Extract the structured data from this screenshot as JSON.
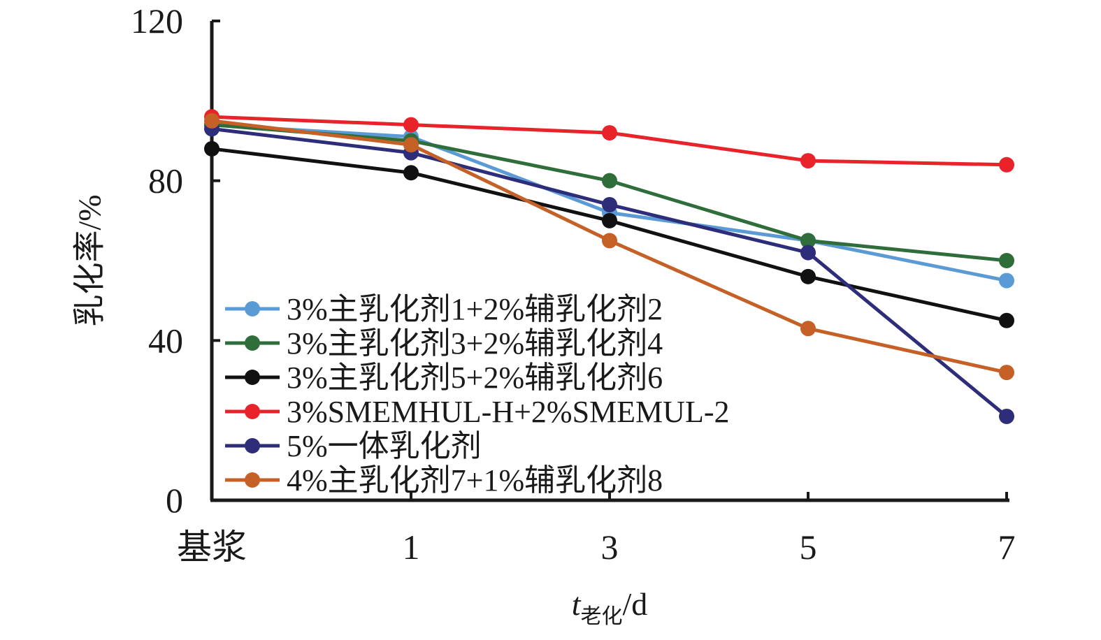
{
  "chart_data": {
    "type": "line",
    "categories": [
      "基浆",
      "1",
      "3",
      "5",
      "7"
    ],
    "ylim": [
      0,
      120
    ],
    "yticks": [
      0,
      40,
      80,
      120
    ],
    "xlabel_main": "t",
    "xlabel_sub": "老化",
    "xlabel_unit": "/d",
    "ylabel": "乳化率/%",
    "legend_position": "center-left",
    "grid": false,
    "series": [
      {
        "name": "3%主乳化剂1+2%辅乳化剂2",
        "color": "#5b9bd5",
        "values": [
          94,
          91,
          72,
          65,
          55
        ]
      },
      {
        "name": "3%主乳化剂3+2%辅乳化剂4",
        "color": "#2f6e3b",
        "values": [
          94,
          90,
          80,
          65,
          60
        ]
      },
      {
        "name": "3%主乳化剂5+2%辅乳化剂6",
        "color": "#111111",
        "values": [
          88,
          82,
          70,
          56,
          45
        ]
      },
      {
        "name": "3%SMEMHUL-H+2%SMEMUL-2",
        "color": "#e8242a",
        "values": [
          96,
          94,
          92,
          85,
          84
        ]
      },
      {
        "name": "5%一体乳化剂",
        "color": "#2e2d7a",
        "values": [
          93,
          87,
          74,
          62,
          21
        ]
      },
      {
        "name": "4%主乳化剂7+1%辅乳化剂8",
        "color": "#c56026",
        "values": [
          95,
          89,
          65,
          43,
          32
        ]
      }
    ]
  }
}
